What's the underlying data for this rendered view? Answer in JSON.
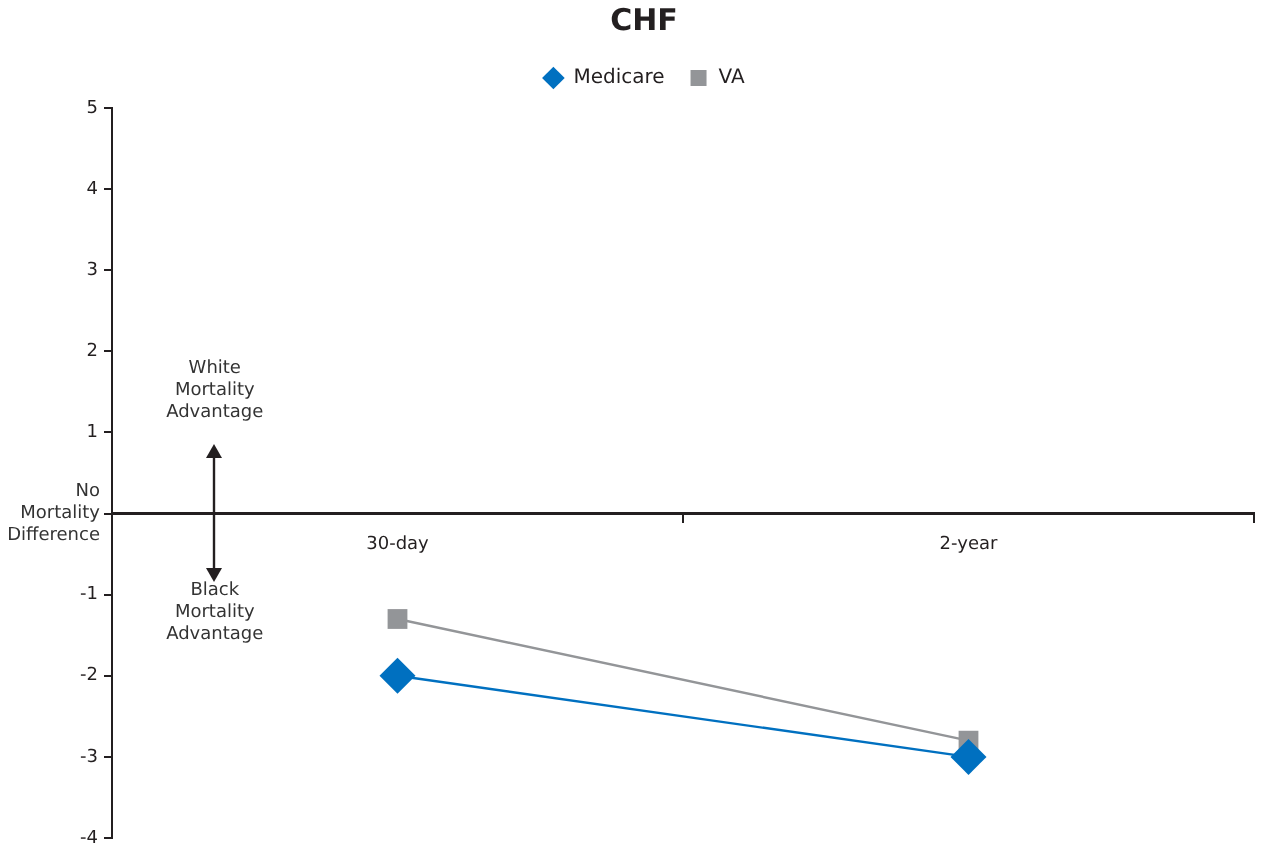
{
  "chart_data": {
    "type": "line",
    "title": "CHF",
    "categories": [
      "30-day",
      "2-year"
    ],
    "series": [
      {
        "name": "Medicare",
        "color": "#0070c0",
        "values": [
          -2.0,
          -3.0
        ],
        "marker": "diamond"
      },
      {
        "name": "VA",
        "color": "#939598",
        "values": [
          -1.3,
          -2.8
        ],
        "marker": "square"
      }
    ],
    "ylim": [
      -4,
      5
    ],
    "yticks": [
      -4,
      -3,
      -2,
      -1,
      {
        "value": 0,
        "label": null
      },
      1,
      2,
      3,
      4,
      5
    ],
    "legend": "top",
    "grid": false,
    "line_style": "solid",
    "annotations": [
      "White Mortality Advantage",
      "No Mortality Difference",
      "Black Mortality Advantage"
    ]
  }
}
